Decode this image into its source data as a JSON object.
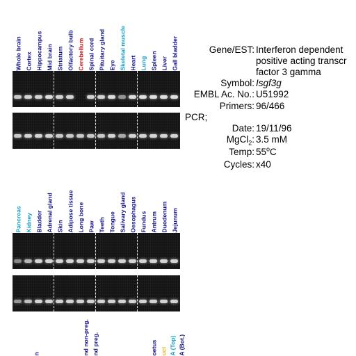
{
  "gels": [
    {
      "lanes": [
        {
          "label": "Whole brain",
          "color": "#14148c",
          "i1": 0.85,
          "i2": 0.85
        },
        {
          "label": "Cortex",
          "color": "#14148c",
          "i1": 0.9,
          "i2": 0.9
        },
        {
          "label": "Hippocampus",
          "color": "#14148c",
          "i1": 0.9,
          "i2": 0.9
        },
        {
          "label": "Mid brain",
          "color": "#14148c",
          "i1": 0.95,
          "i2": 0.9
        },
        {
          "label": "Striatum",
          "color": "#14148c",
          "i1": 0.9,
          "i2": 0.85
        },
        {
          "label": "Olfactory bulb",
          "color": "#14148c",
          "i1": 0.9,
          "i2": 0.85
        },
        {
          "label": "Cerebellum",
          "color": "#cc2020",
          "i1": 0.0,
          "i2": 0.85
        },
        {
          "label": "Spinal cord",
          "color": "#14148c",
          "i1": 0.9,
          "i2": 0.85
        },
        {
          "label": "Pituitary gland",
          "color": "#14148c",
          "i1": 0.9,
          "i2": 0.85
        },
        {
          "label": "Eye",
          "color": "#14148c",
          "i1": 0.95,
          "i2": 0.9
        },
        {
          "label": "Skeletal muscle",
          "color": "#1aa0c8",
          "i1": 0.6,
          "i2": 0.7
        },
        {
          "label": "Heart",
          "color": "#14148c",
          "i1": 0.95,
          "i2": 0.9
        },
        {
          "label": "Lung",
          "color": "#1aa0c8",
          "i1": 0.95,
          "i2": 0.9
        },
        {
          "label": "Spleen",
          "color": "#14148c",
          "i1": 0.95,
          "i2": 0.9
        },
        {
          "label": "Liver",
          "color": "#14148c",
          "i1": 0.95,
          "i2": 0.9
        },
        {
          "label": "Gall bladder",
          "color": "#14148c",
          "i1": 0.95,
          "i2": 0.9
        }
      ]
    },
    {
      "lanes": [
        {
          "label": "Pancreas",
          "color": "#1aa0c8",
          "i1": 0.55,
          "i2": 0.6
        },
        {
          "label": "Kidney",
          "color": "#1aa0c8",
          "i1": 0.75,
          "i2": 0.8
        },
        {
          "label": "Bladder",
          "color": "#14148c",
          "i1": 0.9,
          "i2": 0.9
        },
        {
          "label": "Adrenal gland",
          "color": "#14148c",
          "i1": 0.9,
          "i2": 0.9
        },
        {
          "label": "Skin",
          "color": "#14148c",
          "i1": 0.9,
          "i2": 0.9
        },
        {
          "label": "Adipose tissue",
          "color": "#14148c",
          "i1": 0.9,
          "i2": 0.9
        },
        {
          "label": "Long bone",
          "color": "#14148c",
          "i1": 0.9,
          "i2": 0.9
        },
        {
          "label": "Paw",
          "color": "#14148c",
          "i1": 0.9,
          "i2": 0.9
        },
        {
          "label": "Teeth",
          "color": "#14148c",
          "i1": 0.9,
          "i2": 0.9
        },
        {
          "label": "Tongue",
          "color": "#14148c",
          "i1": 0.9,
          "i2": 0.9
        },
        {
          "label": "Salivary gland",
          "color": "#14148c",
          "i1": 0.9,
          "i2": 0.9
        },
        {
          "label": "Oesophagus",
          "color": "#14148c",
          "i1": 0.9,
          "i2": 0.9
        },
        {
          "label": "Fundus",
          "color": "#14148c",
          "i1": 0.9,
          "i2": 0.9
        },
        {
          "label": "Antrum",
          "color": "#14148c",
          "i1": 0.9,
          "i2": 0.9
        },
        {
          "label": "Duodenum",
          "color": "#14148c",
          "i1": 0.9,
          "i2": 0.9
        },
        {
          "label": "Jejunum",
          "color": "#14148c",
          "i1": 0.9,
          "i2": 0.9
        }
      ]
    }
  ],
  "info": {
    "gene_key": "Gene/EST:",
    "gene_value_lines": [
      "Interferon dependent",
      "positive acting transcr",
      "factor 3 gamma"
    ],
    "symbol_key": "Symbol:",
    "symbol_value": "Isgf3g",
    "embl_key": "EMBL Ac. No.:",
    "embl_value": "U51992",
    "primers_key": "Primers:",
    "primers_value": "96/466",
    "pcr_label": "PCR;",
    "date_key": "Date:",
    "date_value": "19/11/96",
    "mgcl2_key_main": "MgCl",
    "mgcl2_key_sub": "2",
    "mgcl2_key_end": ":",
    "mgcl2_value": "3.5 mM",
    "temp_key": "Temp:",
    "temp_value_main": "55",
    "temp_value_sup": "o",
    "temp_value_end": "C",
    "cycles_key": "Cycles:",
    "cycles_value": "x40"
  },
  "partial_labels": {
    "labels": [
      {
        "text": "n",
        "color": "#14148c"
      },
      {
        "text": "nd non-preg.",
        "color": "#14148c"
      },
      {
        "text": "nd preg.",
        "color": "#14148c"
      },
      {
        "text": "oetus",
        "color": "#14148c"
      },
      {
        "text": "uct",
        "color": "#e8b830"
      },
      {
        "text": "A (Top)",
        "color": "#1aa0c8"
      },
      {
        "text": "A (Bot.)",
        "color": "#14148c"
      }
    ]
  }
}
